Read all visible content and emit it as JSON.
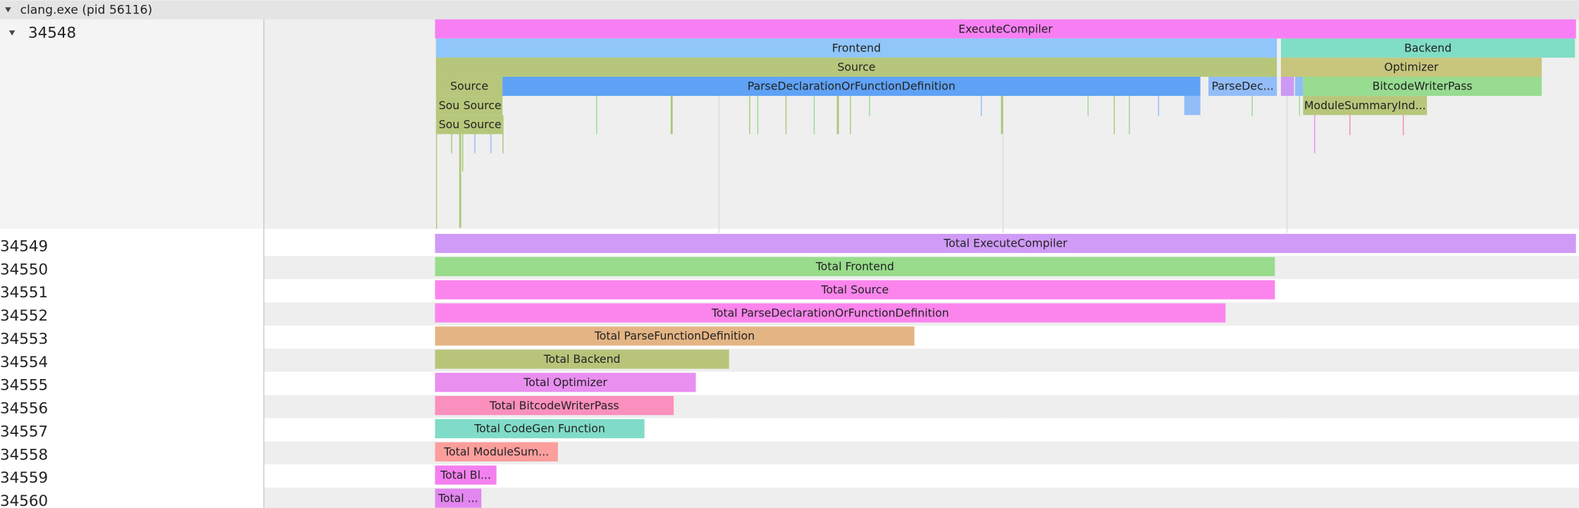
{
  "header": {
    "process": "clang.exe (pid 56116)"
  },
  "threads": [
    {
      "id": "34548",
      "slices": [
        "ExecuteCompiler",
        "Frontend",
        "Backend",
        "Source",
        "Optimizer",
        "Source",
        "ParseDeclarationOrFunctionDefinition",
        "ParseDec...",
        "BitcodeWriterPass",
        "Sou",
        "Source",
        "ModuleSummaryInd...",
        "Sou",
        "Source"
      ]
    },
    {
      "id": "34549",
      "slices": [
        "Total ExecuteCompiler"
      ]
    },
    {
      "id": "34550",
      "slices": [
        "Total Frontend"
      ]
    },
    {
      "id": "34551",
      "slices": [
        "Total Source"
      ]
    },
    {
      "id": "34552",
      "slices": [
        "Total ParseDeclarationOrFunctionDefinition"
      ]
    },
    {
      "id": "34553",
      "slices": [
        "Total ParseFunctionDefinition"
      ]
    },
    {
      "id": "34554",
      "slices": [
        "Total Backend"
      ]
    },
    {
      "id": "34555",
      "slices": [
        "Total Optimizer"
      ]
    },
    {
      "id": "34556",
      "slices": [
        "Total BitcodeWriterPass"
      ]
    },
    {
      "id": "34557",
      "slices": [
        "Total CodeGen Function"
      ]
    },
    {
      "id": "34558",
      "slices": [
        "Total ModuleSum..."
      ]
    },
    {
      "id": "34559",
      "slices": [
        "Total Bl..."
      ]
    },
    {
      "id": "34560",
      "slices": [
        "Total ..."
      ]
    }
  ]
}
